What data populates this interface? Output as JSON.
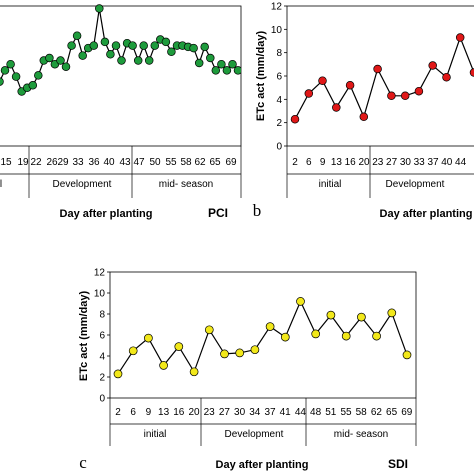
{
  "chart_data": [
    {
      "type": "line",
      "panel": "",
      "treatment": "PCI",
      "xlabel": "Day after planting",
      "ylabel": "",
      "ylim": [
        0,
        10
      ],
      "marker_color": "#1e9b3c",
      "x_tick_labels": [
        "15",
        "19",
        "22",
        "26",
        "29",
        "33",
        "36",
        "40",
        "43",
        "47",
        "50",
        "55",
        "58",
        "62",
        "65",
        "69"
      ],
      "stages": [
        "l",
        "Development",
        "mid- season"
      ],
      "series": [
        {
          "values": [
            6.1,
            5.0,
            4.3,
            3.6,
            3.4,
            3.5,
            6.1,
            7.7,
            6.4,
            6.9,
            5.2,
            6.1,
            6.6,
            5.6,
            4.4,
            4.7,
            4.9,
            5.7,
            6.9,
            7.1,
            6.6,
            6.9,
            6.4,
            8.1,
            8.9,
            7.3,
            7.9,
            8.1,
            11.1,
            8.4,
            7.4,
            8.1,
            6.9,
            8.3,
            8.1,
            6.9,
            8.1,
            6.9,
            8.1,
            8.6,
            8.4,
            7.6,
            8.1,
            8.1,
            8.0,
            7.9,
            6.7,
            8.0,
            7.1,
            6.1,
            6.6,
            6.1,
            6.6,
            6.1
          ]
        }
      ]
    },
    {
      "type": "line",
      "panel": "b",
      "treatment": "",
      "xlabel": "Day after planting",
      "ylabel": "ETc act (mm/day)",
      "ylim": [
        0,
        12
      ],
      "y_ticks": [
        0,
        2,
        4,
        6,
        8,
        10,
        12
      ],
      "marker_color": "#e01818",
      "x_tick_labels": [
        "2",
        "6",
        "9",
        "13",
        "16",
        "20",
        "23",
        "27",
        "30",
        "33",
        "37",
        "40",
        "44"
      ],
      "stages": [
        "initial",
        "Development"
      ],
      "series": [
        {
          "values": [
            2.3,
            4.5,
            5.6,
            3.3,
            5.2,
            2.5,
            6.6,
            4.3,
            4.3,
            4.7,
            6.9,
            5.9,
            9.3,
            6.3
          ]
        }
      ]
    },
    {
      "type": "line",
      "panel": "c",
      "treatment": "SDI",
      "xlabel": "Day after planting",
      "ylabel": "ETc act (mm/day)",
      "ylim": [
        0,
        12
      ],
      "y_ticks": [
        0,
        2,
        4,
        6,
        8,
        10,
        12
      ],
      "marker_color": "#f2e81a",
      "x_tick_labels": [
        "2",
        "6",
        "9",
        "13",
        "16",
        "20",
        "23",
        "27",
        "30",
        "34",
        "37",
        "41",
        "44",
        "48",
        "51",
        "55",
        "58",
        "62",
        "65",
        "69"
      ],
      "stages": [
        "initial",
        "Development",
        "mid- season"
      ],
      "series": [
        {
          "values": [
            2.3,
            4.5,
            5.7,
            3.1,
            4.9,
            2.5,
            6.5,
            4.2,
            4.3,
            4.6,
            6.8,
            5.8,
            9.2,
            6.1,
            7.9,
            5.9,
            7.7,
            5.9,
            8.1,
            4.1
          ]
        }
      ]
    }
  ]
}
